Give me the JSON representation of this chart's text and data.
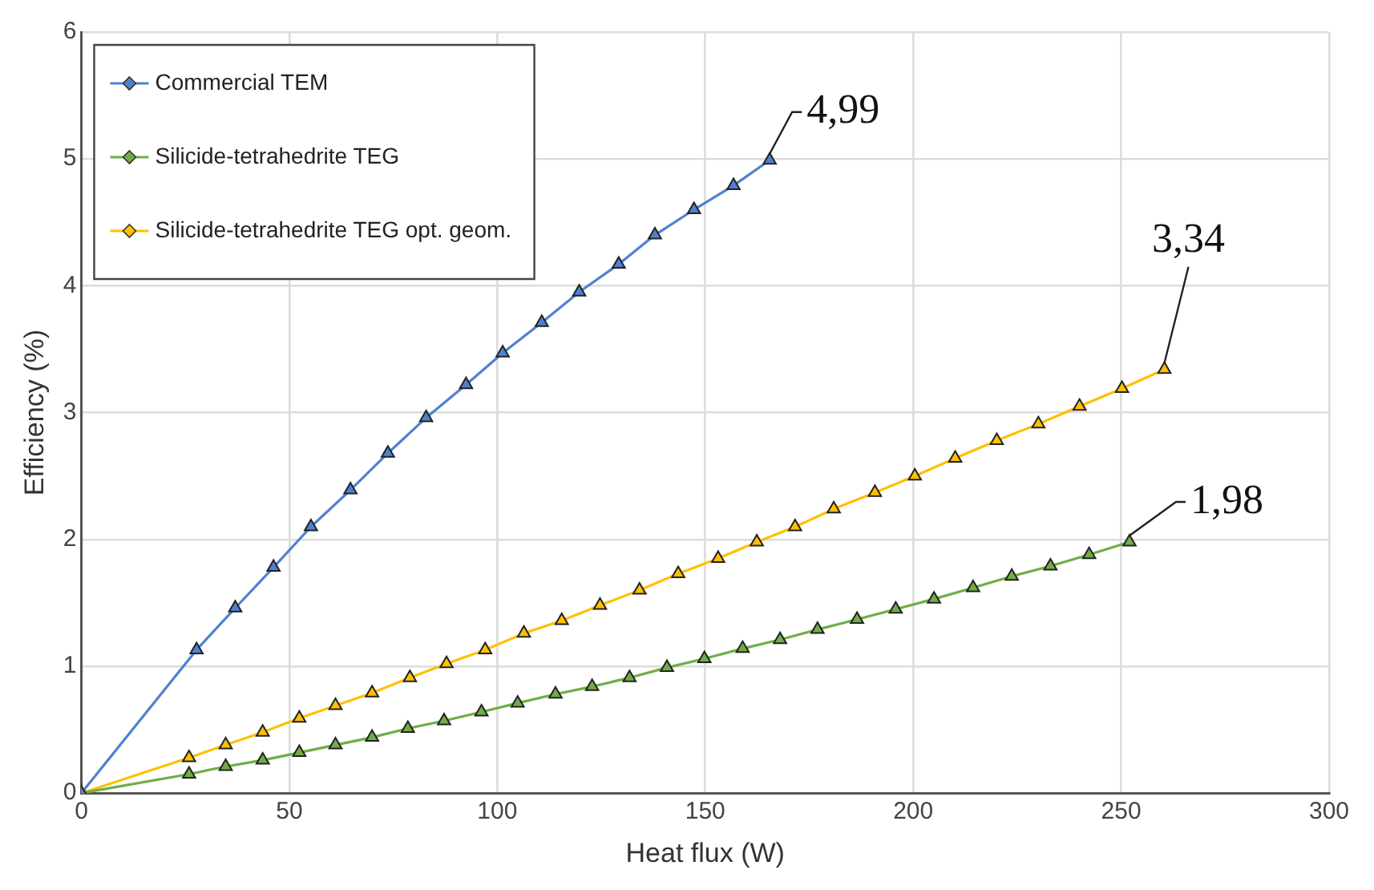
{
  "chart_data": {
    "type": "line",
    "xlabel": "Heat flux (W)",
    "ylabel": "Efficiency (%)",
    "xlim": [
      0,
      300
    ],
    "xticks": [
      0,
      50,
      100,
      150,
      200,
      250,
      300
    ],
    "ylim": [
      0,
      6
    ],
    "yticks": [
      0,
      1,
      2,
      3,
      4,
      5,
      6
    ],
    "grid": true,
    "legend": "top left",
    "marker": "triangle",
    "line_style": "solid",
    "series": [
      {
        "name": "Commercial TEM",
        "color": "#4f81d0",
        "x": [
          0,
          27.7,
          37,
          46.2,
          55.2,
          64.7,
          73.7,
          82.9,
          92.5,
          101.3,
          110.7,
          119.7,
          129.2,
          137.9,
          147.3,
          156.8,
          165.5
        ],
        "values": [
          0,
          1.13,
          1.46,
          1.78,
          2.1,
          2.39,
          2.68,
          2.96,
          3.22,
          3.47,
          3.71,
          3.95,
          4.17,
          4.4,
          4.6,
          4.79,
          4.99
        ]
      },
      {
        "name": "Silicide-tetrahedrite TEG",
        "color": "#70ad47",
        "x": [
          0,
          25.9,
          34.7,
          43.6,
          52.4,
          61.1,
          69.9,
          78.5,
          87.2,
          96.2,
          104.9,
          114,
          122.8,
          131.8,
          140.8,
          149.8,
          159,
          168,
          177,
          186.5,
          195.8,
          205,
          214.4,
          223.7,
          233,
          242.3,
          252
        ],
        "values": [
          0,
          0.15,
          0.21,
          0.26,
          0.32,
          0.38,
          0.44,
          0.51,
          0.57,
          0.64,
          0.71,
          0.78,
          0.84,
          0.91,
          0.99,
          1.06,
          1.14,
          1.21,
          1.29,
          1.37,
          1.45,
          1.53,
          1.62,
          1.71,
          1.79,
          1.88,
          1.98
        ]
      },
      {
        "name": "Silicide-tetrahedrite TEG opt. geom.",
        "color": "#ffc000",
        "x": [
          0,
          25.9,
          34.7,
          43.6,
          52.4,
          61.1,
          69.9,
          79,
          87.8,
          97.1,
          106.4,
          115.5,
          124.7,
          134.2,
          143.5,
          153.1,
          162.4,
          171.6,
          180.9,
          190.8,
          200.4,
          210.1,
          220.1,
          230.1,
          240,
          250.2,
          260.4
        ],
        "values": [
          0,
          0.28,
          0.38,
          0.48,
          0.59,
          0.69,
          0.79,
          0.91,
          1.02,
          1.13,
          1.26,
          1.36,
          1.48,
          1.6,
          1.73,
          1.85,
          1.98,
          2.1,
          2.24,
          2.37,
          2.5,
          2.64,
          2.78,
          2.91,
          3.05,
          3.19,
          3.34
        ]
      }
    ],
    "annotations": [
      {
        "text": "4,99",
        "x": 165.5,
        "y": 4.99
      },
      {
        "text": "3,34",
        "x": 260.4,
        "y": 3.34
      },
      {
        "text": "1,98",
        "x": 252,
        "y": 1.98
      }
    ]
  }
}
